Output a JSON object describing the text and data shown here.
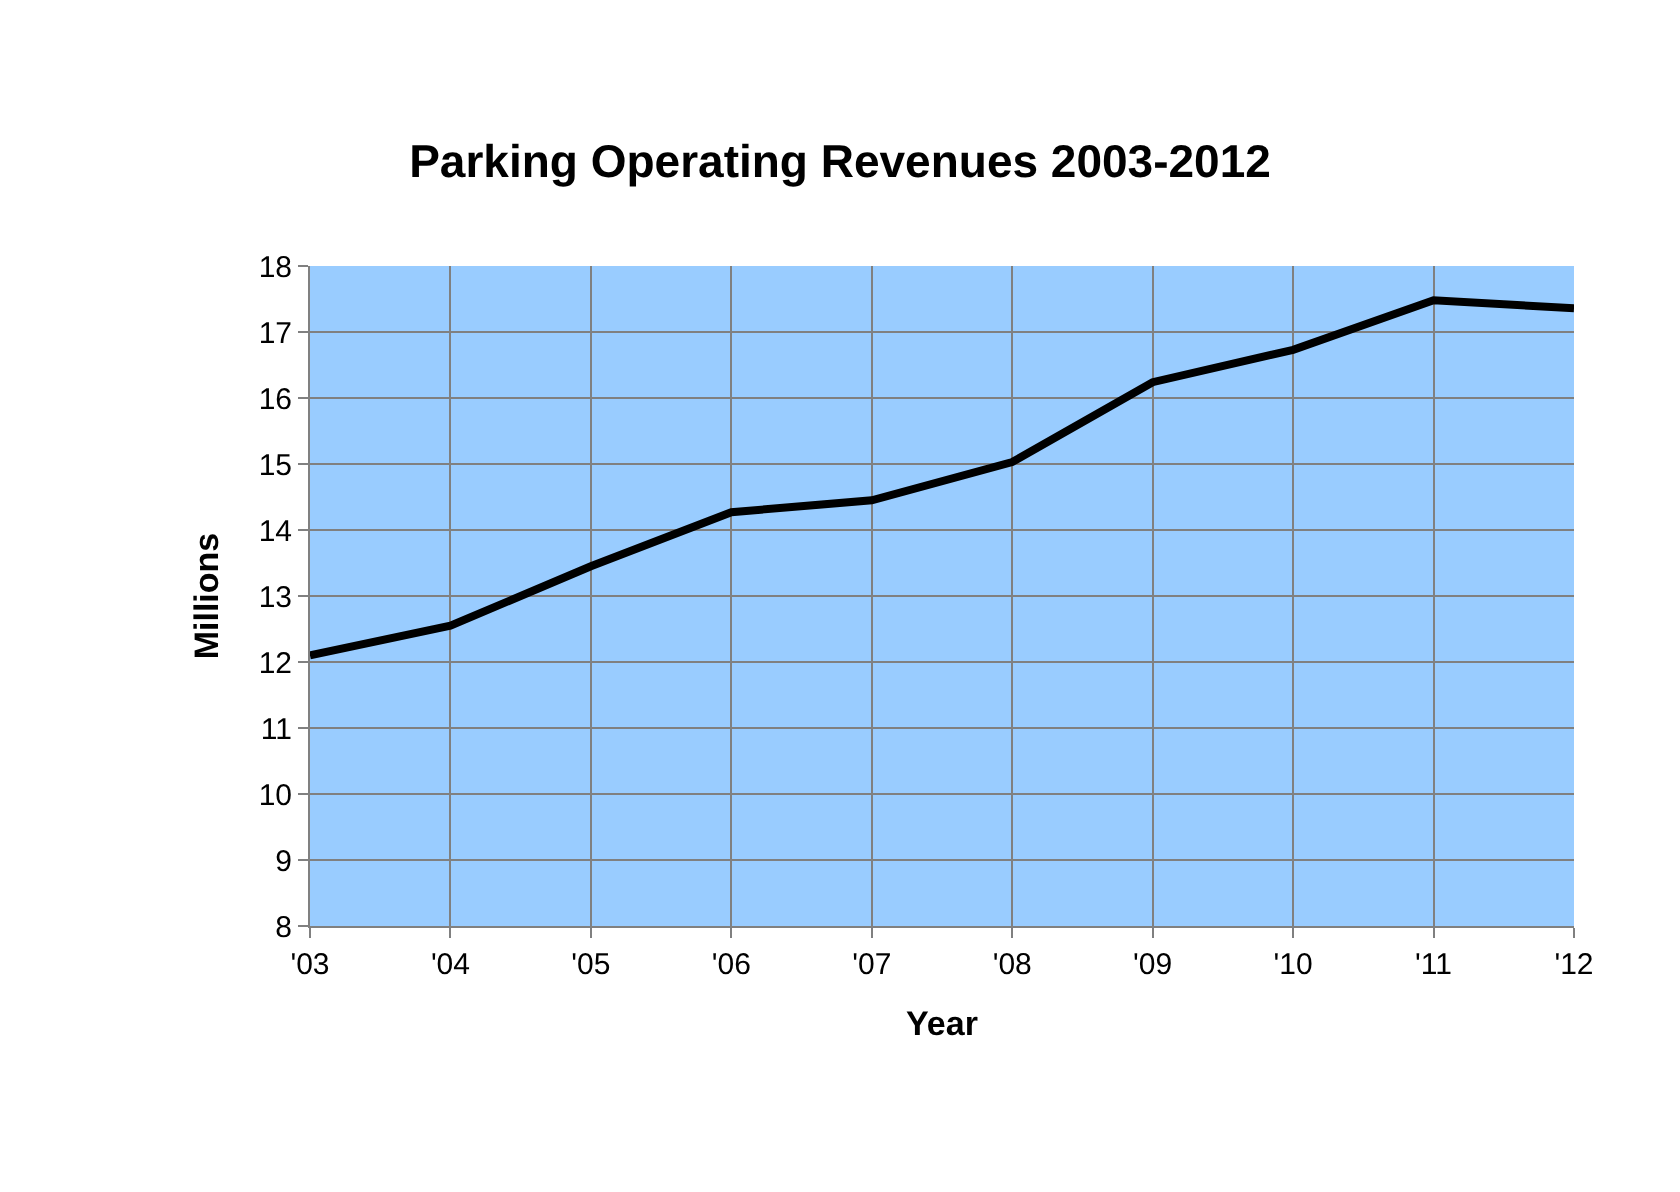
{
  "chart_data": {
    "type": "line",
    "title": "Parking Operating Revenues 2003-2012",
    "xlabel": "Year",
    "ylabel": "Millions",
    "categories": [
      "'03",
      "'04",
      "'05",
      "'06",
      "'07",
      "'08",
      "'09",
      "'10",
      "'11",
      "'12"
    ],
    "series": [
      {
        "color": "#000000",
        "values": [
          12.1,
          12.55,
          13.45,
          14.27,
          14.45,
          15.03,
          16.24,
          16.73,
          17.48,
          17.36
        ]
      }
    ],
    "ylim": [
      8,
      18
    ],
    "yticks": [
      8,
      9,
      10,
      11,
      12,
      13,
      14,
      15,
      16,
      17,
      18
    ],
    "grid": true,
    "marker": "none",
    "line_style": "solid"
  }
}
